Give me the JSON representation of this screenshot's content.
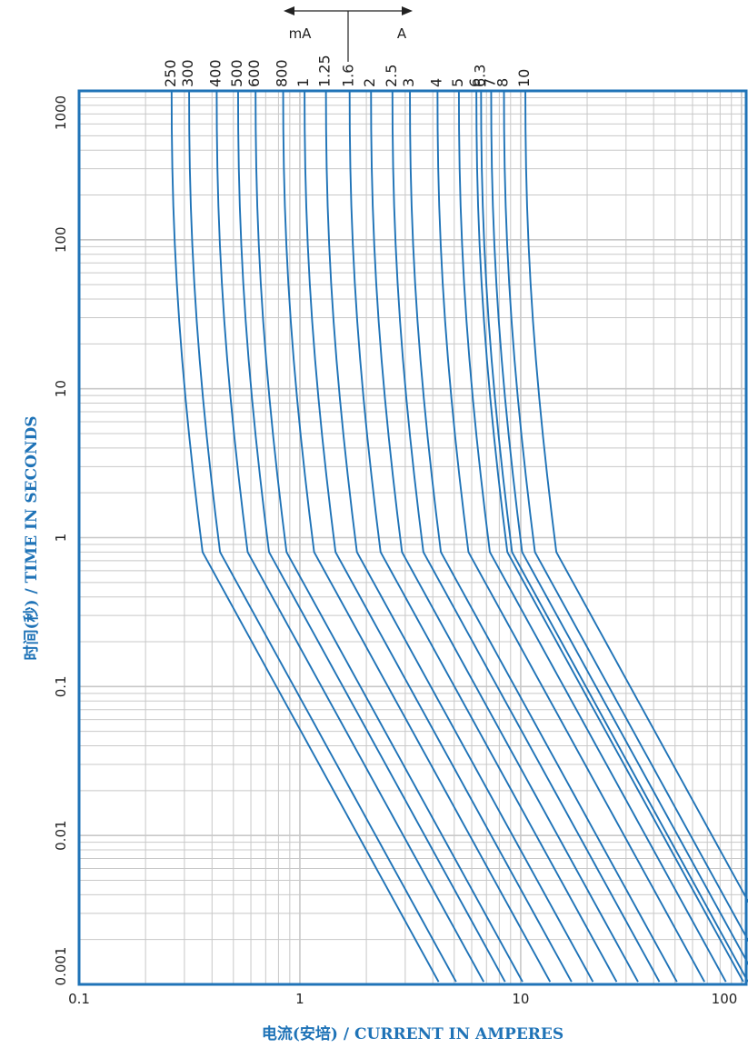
{
  "chart_data": {
    "type": "line",
    "title": "",
    "xlabel": "电流(安培) / CURRENT IN AMPERES",
    "ylabel": "时间(秒) / TIME IN SECONDS",
    "x_scale": "log",
    "y_scale": "log",
    "xlim": [
      0.1,
      105
    ],
    "ylim": [
      0.001,
      1000
    ],
    "grid": true,
    "legend": "none",
    "x_tick_labels": [
      "0.1",
      "1",
      "10",
      "100"
    ],
    "x_tick_values": [
      0.1,
      1,
      10,
      100
    ],
    "y_tick_labels": [
      "1000",
      "100",
      "10",
      "1",
      "0.1",
      "0.01",
      "0.001"
    ],
    "y_tick_values": [
      1000,
      100,
      10,
      1,
      0.1,
      0.01,
      0.001
    ],
    "unit_indicator": {
      "left": "mA",
      "right": "A"
    },
    "colors": {
      "curve": "#1f73b7",
      "frame": "#1f73b7",
      "grid": "#c8c8c8",
      "axis_title": "#1f73b7"
    },
    "series": [
      {
        "name": "250",
        "rating_a": 0.25
      },
      {
        "name": "300",
        "rating_a": 0.3
      },
      {
        "name": "400",
        "rating_a": 0.4
      },
      {
        "name": "500",
        "rating_a": 0.5
      },
      {
        "name": "600",
        "rating_a": 0.6
      },
      {
        "name": "800",
        "rating_a": 0.8
      },
      {
        "name": "1",
        "rating_a": 1
      },
      {
        "name": "1.25",
        "rating_a": 1.25
      },
      {
        "name": "1.6",
        "rating_a": 1.6
      },
      {
        "name": "2",
        "rating_a": 2
      },
      {
        "name": "2.5",
        "rating_a": 2.5
      },
      {
        "name": "3",
        "rating_a": 3
      },
      {
        "name": "4",
        "rating_a": 4
      },
      {
        "name": "5",
        "rating_a": 5
      },
      {
        "name": "6",
        "rating_a": 6
      },
      {
        "name": "6.3",
        "rating_a": 6.3
      },
      {
        "name": "7",
        "rating_a": 7
      },
      {
        "name": "8",
        "rating_a": 8
      },
      {
        "name": "10",
        "rating_a": 10
      }
    ]
  }
}
